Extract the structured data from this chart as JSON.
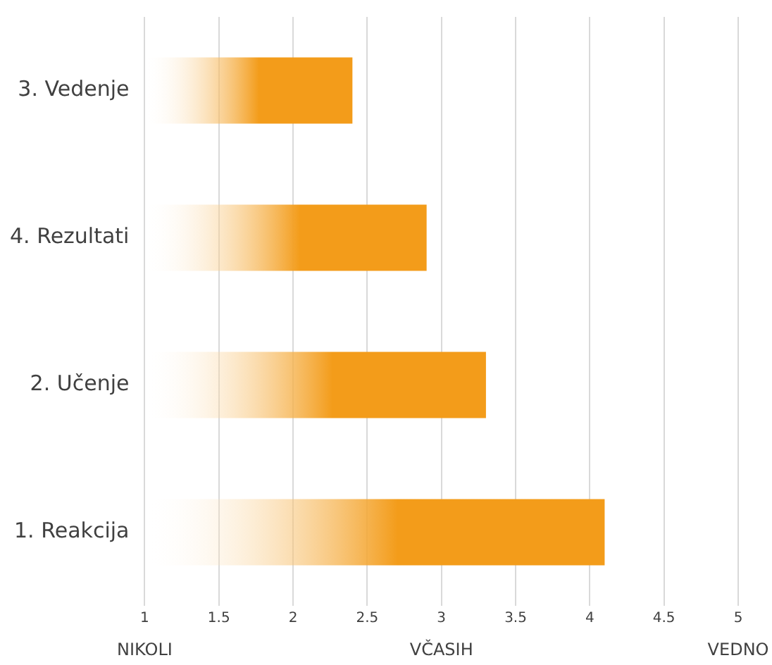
{
  "chart_data": {
    "type": "bar",
    "orientation": "horizontal",
    "categories": [
      "3. Vedenje",
      "4. Rezultati",
      "2. Učenje",
      "1. Reakcija"
    ],
    "values": [
      2.4,
      2.9,
      3.3,
      4.1
    ],
    "color": "#f39c1a",
    "xlim": [
      1,
      5
    ],
    "xticks": [
      1,
      1.5,
      2,
      2.5,
      3,
      3.5,
      4,
      4.5,
      5
    ],
    "annotations": [
      "NIKOLI",
      "VČASIH",
      "VEDNO"
    ],
    "grid": "x",
    "legend": false
  }
}
